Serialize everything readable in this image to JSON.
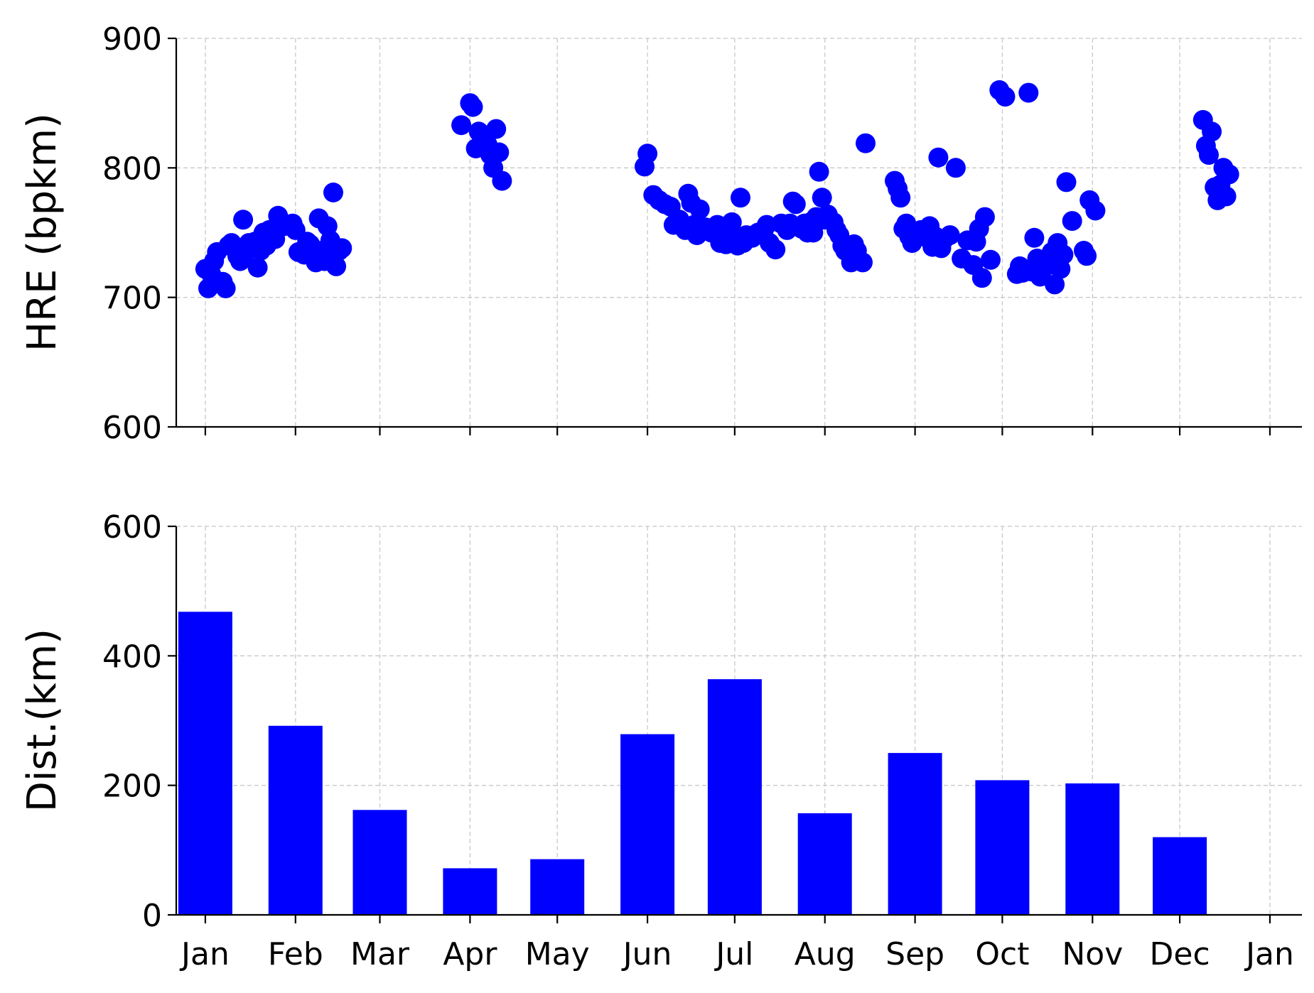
{
  "chart_data": [
    {
      "type": "scatter",
      "ylabel": "HRE (bpkm)",
      "xlabel": "",
      "xlim": [
        "2023-12-22",
        "2025-01-12"
      ],
      "ylim": [
        600,
        900
      ],
      "yticks": [
        600,
        700,
        800,
        900
      ],
      "grid": true,
      "color": "#0000ff",
      "series": [
        {
          "points": [
            [
              "2024-01-01",
              722
            ],
            [
              "2024-01-02",
              707
            ],
            [
              "2024-01-03",
              718
            ],
            [
              "2024-01-04",
              728
            ],
            [
              "2024-01-05",
              735
            ],
            [
              "2024-01-07",
              712
            ],
            [
              "2024-01-08",
              707
            ],
            [
              "2024-01-09",
              740
            ],
            [
              "2024-01-10",
              742
            ],
            [
              "2024-01-12",
              732
            ],
            [
              "2024-01-13",
              728
            ],
            [
              "2024-01-14",
              760
            ],
            [
              "2024-01-15",
              735
            ],
            [
              "2024-01-16",
              742
            ],
            [
              "2024-01-18",
              743
            ],
            [
              "2024-01-19",
              723
            ],
            [
              "2024-01-20",
              736
            ],
            [
              "2024-01-21",
              750
            ],
            [
              "2024-01-22",
              740
            ],
            [
              "2024-01-23",
              752
            ],
            [
              "2024-01-25",
              745
            ],
            [
              "2024-01-26",
              763
            ],
            [
              "2024-01-27",
              758
            ],
            [
              "2024-01-28",
              755
            ],
            [
              "2024-01-30",
              756
            ],
            [
              "2024-01-31",
              757
            ],
            [
              "2024-02-01",
              752
            ],
            [
              "2024-02-02",
              735
            ],
            [
              "2024-02-04",
              733
            ],
            [
              "2024-02-05",
              743
            ],
            [
              "2024-02-06",
              741
            ],
            [
              "2024-02-08",
              727
            ],
            [
              "2024-02-09",
              761
            ],
            [
              "2024-02-10",
              736
            ],
            [
              "2024-02-11",
              728
            ],
            [
              "2024-02-12",
              755
            ],
            [
              "2024-02-13",
              744
            ],
            [
              "2024-02-14",
              781
            ],
            [
              "2024-02-15",
              724
            ],
            [
              "2024-02-16",
              736
            ],
            [
              "2024-02-17",
              738
            ],
            [
              "2024-03-29",
              833
            ],
            [
              "2024-04-01",
              850
            ],
            [
              "2024-04-02",
              847
            ],
            [
              "2024-04-03",
              815
            ],
            [
              "2024-04-04",
              828
            ],
            [
              "2024-04-05",
              817
            ],
            [
              "2024-04-06",
              825
            ],
            [
              "2024-04-07",
              818
            ],
            [
              "2024-04-08",
              810
            ],
            [
              "2024-04-09",
              800
            ],
            [
              "2024-04-10",
              830
            ],
            [
              "2024-04-11",
              812
            ],
            [
              "2024-04-12",
              790
            ],
            [
              "2024-05-31",
              801
            ],
            [
              "2024-06-01",
              811
            ],
            [
              "2024-06-03",
              779
            ],
            [
              "2024-06-05",
              775
            ],
            [
              "2024-06-07",
              772
            ],
            [
              "2024-06-09",
              770
            ],
            [
              "2024-06-10",
              756
            ],
            [
              "2024-06-12",
              760
            ],
            [
              "2024-06-14",
              752
            ],
            [
              "2024-06-15",
              780
            ],
            [
              "2024-06-16",
              773
            ],
            [
              "2024-06-17",
              756
            ],
            [
              "2024-06-18",
              748
            ],
            [
              "2024-06-19",
              768
            ],
            [
              "2024-06-21",
              754
            ],
            [
              "2024-06-23",
              750
            ],
            [
              "2024-06-25",
              756
            ],
            [
              "2024-06-26",
              742
            ],
            [
              "2024-06-27",
              746
            ],
            [
              "2024-06-28",
              741
            ],
            [
              "2024-06-29",
              751
            ],
            [
              "2024-06-30",
              758
            ],
            [
              "2024-07-01",
              745
            ],
            [
              "2024-07-02",
              740
            ],
            [
              "2024-07-03",
              777
            ],
            [
              "2024-07-04",
              742
            ],
            [
              "2024-07-05",
              748
            ],
            [
              "2024-07-07",
              746
            ],
            [
              "2024-07-09",
              750
            ],
            [
              "2024-07-11",
              752
            ],
            [
              "2024-07-12",
              756
            ],
            [
              "2024-07-13",
              742
            ],
            [
              "2024-07-15",
              737
            ],
            [
              "2024-07-17",
              757
            ],
            [
              "2024-07-19",
              752
            ],
            [
              "2024-07-20",
              757
            ],
            [
              "2024-07-21",
              774
            ],
            [
              "2024-07-22",
              772
            ],
            [
              "2024-07-24",
              753
            ],
            [
              "2024-07-25",
              757
            ],
            [
              "2024-07-26",
              750
            ],
            [
              "2024-07-27",
              758
            ],
            [
              "2024-07-28",
              750
            ],
            [
              "2024-07-29",
              762
            ],
            [
              "2024-07-30",
              797
            ],
            [
              "2024-07-31",
              777
            ],
            [
              "2024-08-01",
              760
            ],
            [
              "2024-08-02",
              764
            ],
            [
              "2024-08-04",
              758
            ],
            [
              "2024-08-05",
              752
            ],
            [
              "2024-08-06",
              748
            ],
            [
              "2024-08-07",
              740
            ],
            [
              "2024-08-08",
              736
            ],
            [
              "2024-08-10",
              727
            ],
            [
              "2024-08-11",
              741
            ],
            [
              "2024-08-12",
              736
            ],
            [
              "2024-08-14",
              727
            ],
            [
              "2024-08-15",
              819
            ],
            [
              "2024-08-25",
              790
            ],
            [
              "2024-08-26",
              784
            ],
            [
              "2024-08-27",
              777
            ],
            [
              "2024-08-28",
              753
            ],
            [
              "2024-08-29",
              757
            ],
            [
              "2024-08-30",
              747
            ],
            [
              "2024-08-31",
              742
            ],
            [
              "2024-09-02",
              750
            ],
            [
              "2024-09-03",
              752
            ],
            [
              "2024-09-04",
              747
            ],
            [
              "2024-09-06",
              755
            ],
            [
              "2024-09-07",
              739
            ],
            [
              "2024-09-08",
              747
            ],
            [
              "2024-09-09",
              808
            ],
            [
              "2024-09-10",
              738
            ],
            [
              "2024-09-11",
              745
            ],
            [
              "2024-09-13",
              748
            ],
            [
              "2024-09-15",
              800
            ],
            [
              "2024-09-17",
              730
            ],
            [
              "2024-09-19",
              744
            ],
            [
              "2024-09-21",
              725
            ],
            [
              "2024-09-22",
              743
            ],
            [
              "2024-09-23",
              753
            ],
            [
              "2024-09-24",
              715
            ],
            [
              "2024-09-25",
              762
            ],
            [
              "2024-09-27",
              729
            ],
            [
              "2024-09-30",
              860
            ],
            [
              "2024-10-02",
              855
            ],
            [
              "2024-10-06",
              718
            ],
            [
              "2024-10-07",
              724
            ],
            [
              "2024-10-08",
              719
            ],
            [
              "2024-10-10",
              858
            ],
            [
              "2024-10-11",
              720
            ],
            [
              "2024-10-12",
              746
            ],
            [
              "2024-10-13",
              730
            ],
            [
              "2024-10-14",
              716
            ],
            [
              "2024-10-15",
              722
            ],
            [
              "2024-10-17",
              725
            ],
            [
              "2024-10-18",
              735
            ],
            [
              "2024-10-19",
              710
            ],
            [
              "2024-10-20",
              742
            ],
            [
              "2024-10-21",
              722
            ],
            [
              "2024-10-22",
              733
            ],
            [
              "2024-10-23",
              789
            ],
            [
              "2024-10-25",
              759
            ],
            [
              "2024-10-29",
              736
            ],
            [
              "2024-10-30",
              732
            ],
            [
              "2024-10-31",
              775
            ],
            [
              "2024-11-02",
              767
            ],
            [
              "2024-12-09",
              837
            ],
            [
              "2024-12-10",
              817
            ],
            [
              "2024-12-11",
              810
            ],
            [
              "2024-12-12",
              828
            ],
            [
              "2024-12-13",
              785
            ],
            [
              "2024-12-14",
              775
            ],
            [
              "2024-12-15",
              787
            ],
            [
              "2024-12-16",
              800
            ],
            [
              "2024-12-17",
              778
            ],
            [
              "2024-12-18",
              795
            ]
          ]
        }
      ]
    },
    {
      "type": "bar",
      "ylabel": "Dist.(km)",
      "xlabel": "",
      "ylim": [
        0,
        600
      ],
      "yticks": [
        0,
        200,
        400,
        600
      ],
      "grid": true,
      "color": "#0000ff",
      "categories": [
        "Jan",
        "Feb",
        "Mar",
        "Apr",
        "May",
        "Jun",
        "Jul",
        "Aug",
        "Sep",
        "Oct",
        "Nov",
        "Dec",
        "Jan"
      ],
      "values": [
        468,
        292,
        162,
        72,
        86,
        279,
        364,
        157,
        250,
        208,
        203,
        120,
        0
      ]
    }
  ]
}
